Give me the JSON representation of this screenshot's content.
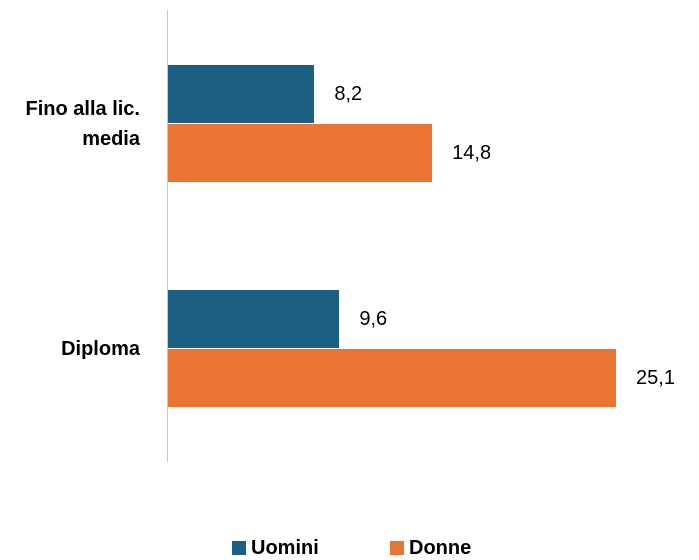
{
  "chart_data": {
    "type": "hbar",
    "categories": [
      "Fino alla lic. media",
      "Diploma"
    ],
    "series": [
      {
        "name": "Uomini",
        "color": "#1b5f82",
        "values": [
          8.2,
          9.6
        ],
        "value_labels": [
          "8,2",
          "9,6"
        ]
      },
      {
        "name": "Donne",
        "color": "#e97434",
        "values": [
          14.8,
          25.1
        ],
        "value_labels": [
          "14,8",
          "25,1"
        ]
      }
    ],
    "legend": "bottom"
  }
}
